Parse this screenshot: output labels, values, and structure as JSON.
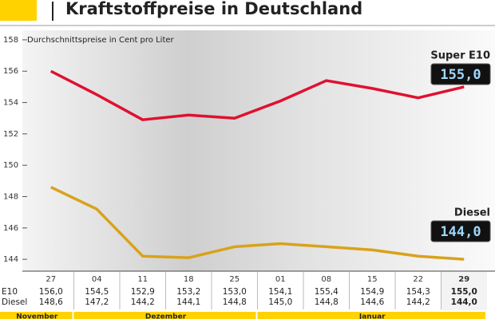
{
  "chart_data": {
    "type": "line",
    "title": "Kraftstoffpreise in Deutschland",
    "subtitle": "Durchschnittspreise in Cent pro Liter",
    "categories": [
      "27",
      "04",
      "11",
      "18",
      "25",
      "01",
      "08",
      "15",
      "22",
      "29"
    ],
    "months": [
      "November",
      "Dezember",
      "Januar"
    ],
    "row_labels": [
      "E10",
      "Diesel"
    ],
    "series": [
      {
        "name": "Super E10",
        "color": "#e0102f",
        "values": [
          156.0,
          154.5,
          152.9,
          153.2,
          153.0,
          154.1,
          155.4,
          154.9,
          154.3,
          155.0
        ],
        "value_labels": [
          "156,0",
          "154,5",
          "152,9",
          "153,2",
          "153,0",
          "154,1",
          "155,4",
          "154,9",
          "154,3",
          "155,0"
        ]
      },
      {
        "name": "Diesel",
        "color": "#d9a21b",
        "values": [
          148.6,
          147.2,
          144.2,
          144.1,
          144.8,
          145.0,
          144.8,
          144.6,
          144.2,
          144.0
        ],
        "value_labels": [
          "148,6",
          "147,2",
          "144,2",
          "144,1",
          "144,8",
          "145,0",
          "144,8",
          "144,6",
          "144,2",
          "144,0"
        ]
      }
    ],
    "ylim": [
      143.6,
      158.2
    ],
    "yticks": [
      144,
      146,
      148,
      150,
      152,
      154,
      156,
      158
    ],
    "grid": false
  }
}
